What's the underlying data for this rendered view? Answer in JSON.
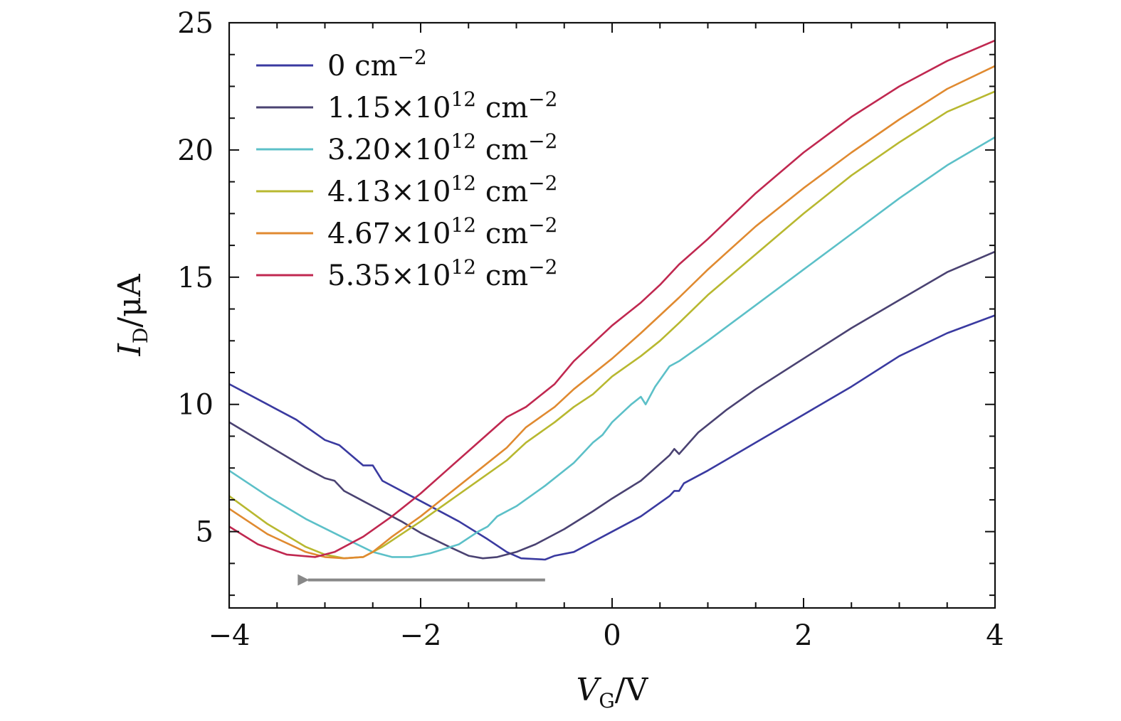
{
  "chart_data": {
    "type": "line",
    "xlabel": {
      "main": "V",
      "sub": "G",
      "unit": "/V"
    },
    "ylabel": {
      "main": "I",
      "sub": "D",
      "unit": "/μA"
    },
    "xlim": [
      -4,
      4
    ],
    "ylim": [
      2.0,
      25
    ],
    "xticks": [
      -4,
      -2,
      0,
      2,
      4
    ],
    "xtick_labels": [
      "−4",
      "−2",
      "0",
      "2",
      "4"
    ],
    "yticks": [
      5,
      10,
      15,
      20,
      25
    ],
    "ytick_labels": [
      "5",
      "10",
      "15",
      "20",
      "25"
    ],
    "grid": false,
    "legend_position": "top-left",
    "annotation": {
      "type": "arrow",
      "direction": "left",
      "from": [
        -0.7,
        3.1
      ],
      "to": [
        -3.4,
        3.1
      ],
      "color": "#888888"
    },
    "series": [
      {
        "legend": {
          "base": "0 cm",
          "exp": "−2"
        },
        "color": "#3a3aa0",
        "points": [
          [
            -4.0,
            10.8
          ],
          [
            -3.6,
            10.0
          ],
          [
            -3.3,
            9.4
          ],
          [
            -3.0,
            8.6
          ],
          [
            -2.85,
            8.4
          ],
          [
            -2.6,
            7.6
          ],
          [
            -2.5,
            7.6
          ],
          [
            -2.4,
            7.0
          ],
          [
            -2.0,
            6.2
          ],
          [
            -1.6,
            5.4
          ],
          [
            -1.3,
            4.7
          ],
          [
            -1.1,
            4.2
          ],
          [
            -0.95,
            3.95
          ],
          [
            -0.7,
            3.9
          ],
          [
            -0.6,
            4.05
          ],
          [
            -0.4,
            4.2
          ],
          [
            -0.2,
            4.6
          ],
          [
            0.0,
            5.0
          ],
          [
            0.3,
            5.6
          ],
          [
            0.6,
            6.4
          ],
          [
            0.65,
            6.6
          ],
          [
            0.7,
            6.6
          ],
          [
            0.75,
            6.9
          ],
          [
            1.0,
            7.4
          ],
          [
            1.5,
            8.5
          ],
          [
            2.0,
            9.6
          ],
          [
            2.5,
            10.7
          ],
          [
            3.0,
            11.9
          ],
          [
            3.5,
            12.8
          ],
          [
            4.0,
            13.5
          ]
        ]
      },
      {
        "legend": {
          "base": "1.15×10",
          "sup": "12",
          "exp": "−2"
        },
        "color": "#4a4272",
        "points": [
          [
            -4.0,
            9.3
          ],
          [
            -3.6,
            8.4
          ],
          [
            -3.2,
            7.5
          ],
          [
            -3.0,
            7.1
          ],
          [
            -2.9,
            7.0
          ],
          [
            -2.8,
            6.6
          ],
          [
            -2.5,
            6.0
          ],
          [
            -2.2,
            5.4
          ],
          [
            -2.0,
            4.95
          ],
          [
            -1.7,
            4.4
          ],
          [
            -1.5,
            4.05
          ],
          [
            -1.35,
            3.95
          ],
          [
            -1.2,
            4.0
          ],
          [
            -1.0,
            4.2
          ],
          [
            -0.8,
            4.5
          ],
          [
            -0.5,
            5.1
          ],
          [
            -0.2,
            5.8
          ],
          [
            0.0,
            6.3
          ],
          [
            0.3,
            7.0
          ],
          [
            0.6,
            8.0
          ],
          [
            0.65,
            8.25
          ],
          [
            0.7,
            8.05
          ],
          [
            0.9,
            8.9
          ],
          [
            1.2,
            9.8
          ],
          [
            1.5,
            10.6
          ],
          [
            2.0,
            11.8
          ],
          [
            2.5,
            13.0
          ],
          [
            3.0,
            14.1
          ],
          [
            3.5,
            15.2
          ],
          [
            4.0,
            16.0
          ]
        ]
      },
      {
        "legend": {
          "base": "3.20×10",
          "sup": "12",
          "exp": "−2"
        },
        "color": "#5cc0c8",
        "points": [
          [
            -4.0,
            7.4
          ],
          [
            -3.6,
            6.4
          ],
          [
            -3.2,
            5.5
          ],
          [
            -2.8,
            4.75
          ],
          [
            -2.5,
            4.2
          ],
          [
            -2.3,
            4.0
          ],
          [
            -2.1,
            4.0
          ],
          [
            -1.9,
            4.15
          ],
          [
            -1.6,
            4.5
          ],
          [
            -1.4,
            5.0
          ],
          [
            -1.3,
            5.2
          ],
          [
            -1.2,
            5.6
          ],
          [
            -1.0,
            6.0
          ],
          [
            -0.7,
            6.8
          ],
          [
            -0.4,
            7.7
          ],
          [
            -0.2,
            8.5
          ],
          [
            -0.1,
            8.8
          ],
          [
            0.0,
            9.3
          ],
          [
            0.2,
            10.0
          ],
          [
            0.3,
            10.3
          ],
          [
            0.35,
            10.0
          ],
          [
            0.45,
            10.7
          ],
          [
            0.6,
            11.5
          ],
          [
            0.7,
            11.7
          ],
          [
            1.0,
            12.5
          ],
          [
            1.5,
            13.9
          ],
          [
            2.0,
            15.3
          ],
          [
            2.5,
            16.7
          ],
          [
            3.0,
            18.1
          ],
          [
            3.5,
            19.4
          ],
          [
            4.0,
            20.5
          ]
        ]
      },
      {
        "legend": {
          "base": "4.13×10",
          "sup": "12",
          "exp": "−2"
        },
        "color": "#b8b830",
        "points": [
          [
            -4.0,
            6.4
          ],
          [
            -3.6,
            5.3
          ],
          [
            -3.2,
            4.4
          ],
          [
            -3.0,
            4.1
          ],
          [
            -2.8,
            3.95
          ],
          [
            -2.6,
            4.0
          ],
          [
            -2.4,
            4.4
          ],
          [
            -2.2,
            4.9
          ],
          [
            -2.0,
            5.4
          ],
          [
            -1.7,
            6.2
          ],
          [
            -1.4,
            7.0
          ],
          [
            -1.1,
            7.8
          ],
          [
            -0.9,
            8.5
          ],
          [
            -0.6,
            9.3
          ],
          [
            -0.4,
            9.9
          ],
          [
            -0.2,
            10.4
          ],
          [
            0.0,
            11.1
          ],
          [
            0.3,
            11.9
          ],
          [
            0.5,
            12.5
          ],
          [
            0.7,
            13.2
          ],
          [
            1.0,
            14.3
          ],
          [
            1.5,
            15.9
          ],
          [
            2.0,
            17.5
          ],
          [
            2.5,
            19.0
          ],
          [
            3.0,
            20.3
          ],
          [
            3.5,
            21.5
          ],
          [
            4.0,
            22.3
          ]
        ]
      },
      {
        "legend": {
          "base": "4.67×10",
          "sup": "12",
          "exp": "−2"
        },
        "color": "#e08a30",
        "points": [
          [
            -4.0,
            5.9
          ],
          [
            -3.6,
            4.9
          ],
          [
            -3.2,
            4.2
          ],
          [
            -3.0,
            4.0
          ],
          [
            -2.8,
            3.95
          ],
          [
            -2.6,
            4.0
          ],
          [
            -2.5,
            4.2
          ],
          [
            -2.3,
            4.8
          ],
          [
            -2.0,
            5.6
          ],
          [
            -1.7,
            6.5
          ],
          [
            -1.4,
            7.4
          ],
          [
            -1.1,
            8.3
          ],
          [
            -0.9,
            9.1
          ],
          [
            -0.6,
            9.9
          ],
          [
            -0.4,
            10.6
          ],
          [
            -0.2,
            11.2
          ],
          [
            0.0,
            11.8
          ],
          [
            0.3,
            12.8
          ],
          [
            0.5,
            13.5
          ],
          [
            0.7,
            14.2
          ],
          [
            1.0,
            15.3
          ],
          [
            1.5,
            17.0
          ],
          [
            2.0,
            18.5
          ],
          [
            2.5,
            19.9
          ],
          [
            3.0,
            21.2
          ],
          [
            3.5,
            22.4
          ],
          [
            4.0,
            23.3
          ]
        ]
      },
      {
        "legend": {
          "base": "5.35×10",
          "sup": "12",
          "exp": "−2"
        },
        "color": "#c02850",
        "points": [
          [
            -4.0,
            5.2
          ],
          [
            -3.7,
            4.5
          ],
          [
            -3.4,
            4.1
          ],
          [
            -3.1,
            4.0
          ],
          [
            -2.9,
            4.2
          ],
          [
            -2.6,
            4.8
          ],
          [
            -2.3,
            5.6
          ],
          [
            -2.0,
            6.5
          ],
          [
            -1.7,
            7.5
          ],
          [
            -1.4,
            8.5
          ],
          [
            -1.1,
            9.5
          ],
          [
            -0.9,
            9.9
          ],
          [
            -0.6,
            10.8
          ],
          [
            -0.4,
            11.7
          ],
          [
            -0.2,
            12.4
          ],
          [
            0.0,
            13.1
          ],
          [
            0.3,
            14.0
          ],
          [
            0.5,
            14.7
          ],
          [
            0.7,
            15.5
          ],
          [
            1.0,
            16.5
          ],
          [
            1.5,
            18.3
          ],
          [
            2.0,
            19.9
          ],
          [
            2.5,
            21.3
          ],
          [
            3.0,
            22.5
          ],
          [
            3.5,
            23.5
          ],
          [
            4.0,
            24.3
          ]
        ]
      }
    ]
  }
}
